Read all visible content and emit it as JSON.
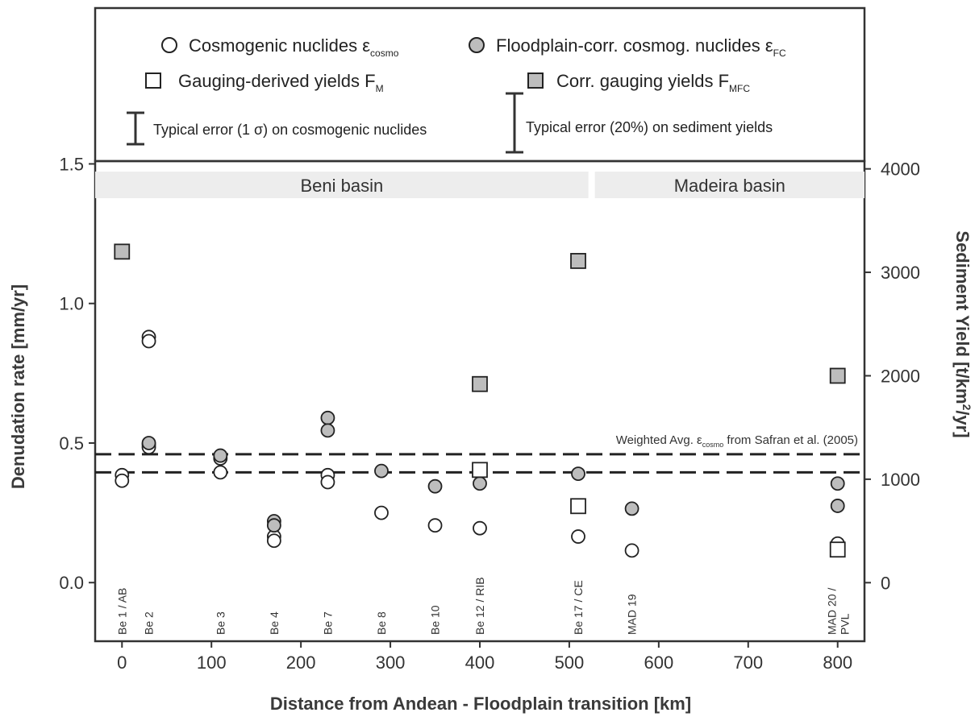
{
  "chart_data": {
    "type": "scatter",
    "xlabel": "Distance from Andean - Floodplain transition [km]",
    "ylabel": "Denudation rate [mm/yr]",
    "y2label_main": "Sediment Yield [t/km",
    "y2label_sup": "2",
    "y2label_end": "/yr]",
    "xlim": [
      -30,
      830
    ],
    "ylim": [
      -0.21,
      1.51
    ],
    "y2lim": [
      -566,
      4075
    ],
    "xticks": [
      "0",
      "100",
      "200",
      "300",
      "400",
      "500",
      "600",
      "700",
      "800"
    ],
    "yticks": [
      "0.0",
      "0.5",
      "1.0",
      "1.5"
    ],
    "y2ticks": [
      "0",
      "1000",
      "2000",
      "3000",
      "4000"
    ],
    "basins": [
      {
        "name": "Beni basin",
        "x_start": -30,
        "x_end": 525
      },
      {
        "name": "Madeira basin",
        "x_start": 525,
        "x_end": 830
      }
    ],
    "reference_lines": {
      "label_prefix": "Weighted Avg. ",
      "label_eps": "ε",
      "label_sub": "cosmo",
      "label_suffix": " from Safran et al. (2005)",
      "values": [
        0.46,
        0.395
      ]
    },
    "site_labels": [
      {
        "x": 0,
        "text": "Be 1 / AB"
      },
      {
        "x": 30,
        "text": "Be 2"
      },
      {
        "x": 110,
        "text": "Be 3"
      },
      {
        "x": 170,
        "text": "Be 4"
      },
      {
        "x": 230,
        "text": "Be 7"
      },
      {
        "x": 290,
        "text": "Be 8"
      },
      {
        "x": 350,
        "text": "Be 10"
      },
      {
        "x": 400,
        "text": "Be 12 / RIB"
      },
      {
        "x": 510,
        "text": "Be 17 / CE"
      },
      {
        "x": 570,
        "text": "MAD 19"
      },
      {
        "x": 800,
        "text": "MAD 20 /",
        "text2": "PVL"
      }
    ],
    "series": [
      {
        "name": "Cosmogenic nuclides",
        "symbol": "ε",
        "sub": "cosmo",
        "marker": "open-circle",
        "axis": "left",
        "points": [
          [
            0,
            0.385
          ],
          [
            0,
            0.365
          ],
          [
            30,
            0.88
          ],
          [
            30,
            0.865
          ],
          [
            30,
            0.495
          ],
          [
            30,
            0.485
          ],
          [
            110,
            0.445
          ],
          [
            110,
            0.395
          ],
          [
            170,
            0.165
          ],
          [
            170,
            0.15
          ],
          [
            230,
            0.385
          ],
          [
            230,
            0.36
          ],
          [
            290,
            0.25
          ],
          [
            350,
            0.205
          ],
          [
            400,
            0.195
          ],
          [
            510,
            0.165
          ],
          [
            570,
            0.115
          ],
          [
            800,
            0.14
          ]
        ]
      },
      {
        "name": "Floodplain-corr. cosmog. nuclides",
        "symbol": "ε",
        "sub": "FC",
        "marker": "filled-circle",
        "axis": "left",
        "points": [
          [
            30,
            0.5
          ],
          [
            110,
            0.455
          ],
          [
            170,
            0.22
          ],
          [
            170,
            0.205
          ],
          [
            230,
            0.59
          ],
          [
            230,
            0.545
          ],
          [
            290,
            0.4
          ],
          [
            350,
            0.345
          ],
          [
            400,
            0.355
          ],
          [
            510,
            0.39
          ],
          [
            570,
            0.265
          ],
          [
            800,
            0.355
          ],
          [
            800,
            0.275
          ]
        ]
      },
      {
        "name": "Gauging-derived yields",
        "symbol": "F",
        "sub": "M",
        "marker": "open-square",
        "axis": "right",
        "points": [
          [
            400,
            1090
          ],
          [
            510,
            740
          ],
          [
            800,
            320
          ]
        ]
      },
      {
        "name": "Corr. gauging yields",
        "symbol": "F",
        "sub": "MFC",
        "marker": "filled-square",
        "axis": "right",
        "points": [
          [
            0,
            3200
          ],
          [
            400,
            1920
          ],
          [
            510,
            3110
          ],
          [
            800,
            2000
          ]
        ]
      }
    ],
    "error_bars": [
      {
        "label": "Typical error (1 σ) on cosmogenic nuclides"
      },
      {
        "label": "Typical error (20%) on sediment yields"
      }
    ]
  },
  "colors": {
    "frame": "#333333",
    "filled_marker": "#bdbdbd",
    "basin_band": "#ededed",
    "dashed_line": "#222222"
  }
}
